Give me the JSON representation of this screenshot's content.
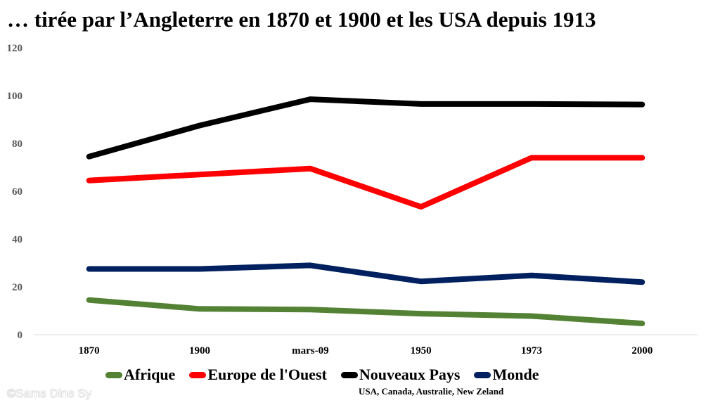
{
  "slide": {
    "title": "… tirée par l’Angleterre en 1870 et 1900 et les USA depuis 1913",
    "note": "USA, Canada, Australie,  New Zeland",
    "watermark": "©Sams Dine Sy"
  },
  "chart_data": {
    "type": "line",
    "categories": [
      "1870",
      "1900",
      "mars-09",
      "1950",
      "1973",
      "2000"
    ],
    "ylim": [
      0,
      120
    ],
    "yticks": [
      0,
      20,
      40,
      60,
      80,
      100,
      120
    ],
    "grid": false,
    "legend_position": "bottom",
    "series": [
      {
        "name": "Afrique",
        "color": "#548235",
        "values": [
          14.5,
          10.8,
          10.5,
          8.8,
          7.8,
          4.7
        ]
      },
      {
        "name": "Europe de l'Ouest",
        "color": "#ff0000",
        "values": [
          64.5,
          67,
          69.5,
          53.5,
          74,
          74
        ]
      },
      {
        "name": "Nouveaux Pays",
        "color": "#000000",
        "values": [
          74.5,
          87.5,
          98.5,
          96.5,
          96.5,
          96.3
        ]
      },
      {
        "name": "Monde",
        "color": "#002060",
        "values": [
          27.5,
          27.5,
          29,
          22.3,
          24.8,
          22
        ]
      }
    ]
  }
}
